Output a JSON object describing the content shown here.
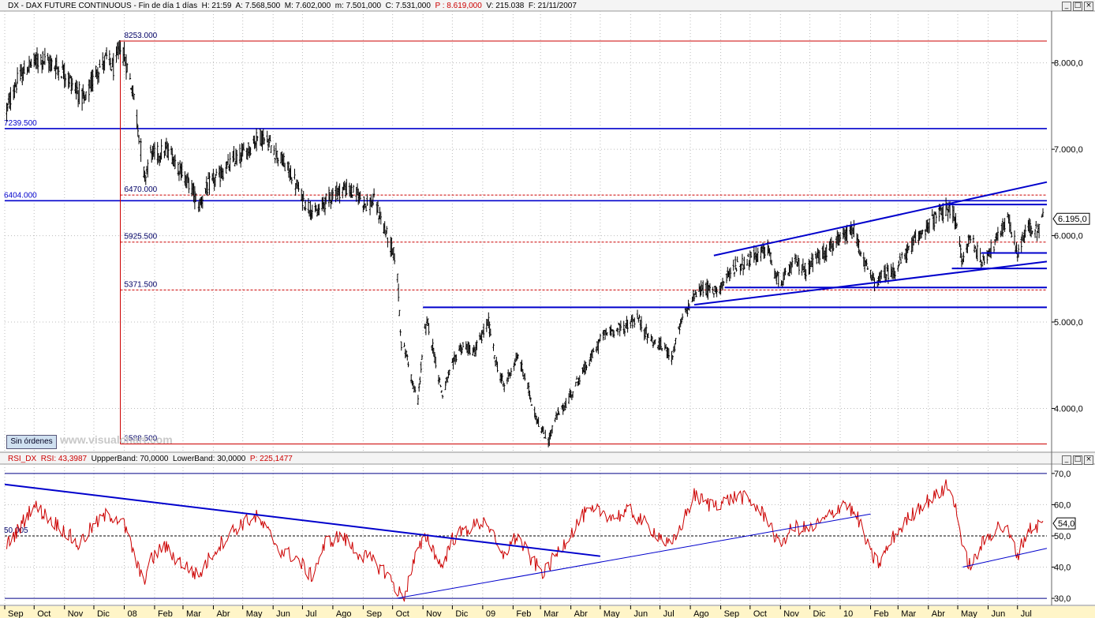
{
  "main_header": {
    "symbol": "DX",
    "name": "DAX FUTURE CONTINUOUS",
    "period": "Fin de día 1 días",
    "h": "H: 21:59",
    "a": "A: 7.568,500",
    "m": "M: 7.602,000",
    "mn": "m: 7.501,000",
    "c": "C: 7.531,000",
    "p": "P : 8.619,000",
    "v": "V: 215.038",
    "f": "F: 21/11/2007"
  },
  "rsi_header": {
    "name": "RSI_DX",
    "rsi": "RSI: 43,3987",
    "upper": "UppperBand: 70,0000",
    "lower": "LowerBand: 30,0000",
    "p": "P: 225,1477"
  },
  "watermark": "www.visualchart.com",
  "order_button": "Sin órdenes",
  "window_buttons": [
    "_",
    "□",
    "×"
  ],
  "colors": {
    "price": "#000000",
    "trendline": "#0000cc",
    "rsi_line": "#cc0000",
    "level_red": "#cc0000",
    "grid": "#bbbbbb",
    "axis_text": "#000000",
    "bg": "#ffffff"
  },
  "chart_data": [
    {
      "type": "ohlc",
      "title": "DX - DAX FUTURE CONTINUOUS",
      "ylim": [
        3520,
        8600
      ],
      "y_ticks": [
        {
          "v": 4000,
          "label": "4.000,0"
        },
        {
          "v": 5000,
          "label": "5.000,0"
        },
        {
          "v": 6000,
          "label": "6.000,0"
        },
        {
          "v": 7000,
          "label": "7.000,0"
        },
        {
          "v": 8000,
          "label": "8.000,0"
        }
      ],
      "last_value_label": "6.195,0",
      "last_value": 6195,
      "x_range": [
        "2007-09-01",
        "2010-07-31"
      ],
      "x_labels": [
        {
          "date": "2007-09-01",
          "label": "Sep"
        },
        {
          "date": "2007-10-01",
          "label": "Oct"
        },
        {
          "date": "2007-11-01",
          "label": "Nov"
        },
        {
          "date": "2007-12-01",
          "label": "Dic"
        },
        {
          "date": "2008-01-01",
          "label": "08"
        },
        {
          "date": "2008-02-01",
          "label": "Feb"
        },
        {
          "date": "2008-03-01",
          "label": "Mar"
        },
        {
          "date": "2008-04-01",
          "label": "Abr"
        },
        {
          "date": "2008-05-01",
          "label": "May"
        },
        {
          "date": "2008-06-01",
          "label": "Jun"
        },
        {
          "date": "2008-07-01",
          "label": "Jul"
        },
        {
          "date": "2008-08-01",
          "label": "Ago"
        },
        {
          "date": "2008-09-01",
          "label": "Sep"
        },
        {
          "date": "2008-10-01",
          "label": "Oct"
        },
        {
          "date": "2008-11-01",
          "label": "Nov"
        },
        {
          "date": "2008-12-01",
          "label": "Dic"
        },
        {
          "date": "2009-01-01",
          "label": "09"
        },
        {
          "date": "2009-02-01",
          "label": "Feb"
        },
        {
          "date": "2009-03-01",
          "label": "Mar"
        },
        {
          "date": "2009-04-01",
          "label": "Abr"
        },
        {
          "date": "2009-05-01",
          "label": "May"
        },
        {
          "date": "2009-06-01",
          "label": "Jun"
        },
        {
          "date": "2009-07-01",
          "label": "Jul"
        },
        {
          "date": "2009-08-01",
          "label": "Ago"
        },
        {
          "date": "2009-09-01",
          "label": "Sep"
        },
        {
          "date": "2009-10-01",
          "label": "Oct"
        },
        {
          "date": "2009-11-01",
          "label": "Nov"
        },
        {
          "date": "2009-12-01",
          "label": "Dic"
        },
        {
          "date": "2010-01-01",
          "label": "10"
        },
        {
          "date": "2010-02-01",
          "label": "Feb"
        },
        {
          "date": "2010-03-01",
          "label": "Mar"
        },
        {
          "date": "2010-04-01",
          "label": "Abr"
        },
        {
          "date": "2010-05-01",
          "label": "May"
        },
        {
          "date": "2010-06-01",
          "label": "Jun"
        },
        {
          "date": "2010-07-01",
          "label": "Jul"
        }
      ],
      "price_path": [
        [
          "2007-09-03",
          7450
        ],
        [
          "2007-09-12",
          7750
        ],
        [
          "2007-09-25",
          7960
        ],
        [
          "2007-10-08",
          8050
        ],
        [
          "2007-10-20",
          7980
        ],
        [
          "2007-10-31",
          7900
        ],
        [
          "2007-11-10",
          7750
        ],
        [
          "2007-11-22",
          7550
        ],
        [
          "2007-12-03",
          7900
        ],
        [
          "2007-12-14",
          8050
        ],
        [
          "2007-12-22",
          7920
        ],
        [
          "2007-12-28",
          8220
        ],
        [
          "2008-01-04",
          7950
        ],
        [
          "2008-01-11",
          7600
        ],
        [
          "2008-01-17",
          7100
        ],
        [
          "2008-01-22",
          6650
        ],
        [
          "2008-01-27",
          6950
        ],
        [
          "2008-02-05",
          6950
        ],
        [
          "2008-02-15",
          7000
        ],
        [
          "2008-02-28",
          6750
        ],
        [
          "2008-03-10",
          6550
        ],
        [
          "2008-03-17",
          6350
        ],
        [
          "2008-03-28",
          6600
        ],
        [
          "2008-04-08",
          6700
        ],
        [
          "2008-04-22",
          6880
        ],
        [
          "2008-05-05",
          6980
        ],
        [
          "2008-05-18",
          7160
        ],
        [
          "2008-05-27",
          7080
        ],
        [
          "2008-06-08",
          6900
        ],
        [
          "2008-06-20",
          6700
        ],
        [
          "2008-07-02",
          6400
        ],
        [
          "2008-07-15",
          6250
        ],
        [
          "2008-07-28",
          6450
        ],
        [
          "2008-08-12",
          6550
        ],
        [
          "2008-08-26",
          6480
        ],
        [
          "2008-09-05",
          6350
        ],
        [
          "2008-09-12",
          6400
        ],
        [
          "2008-09-19",
          6200
        ],
        [
          "2008-09-30",
          5850
        ],
        [
          "2008-10-05",
          5700
        ],
        [
          "2008-10-10",
          4750
        ],
        [
          "2008-10-16",
          4600
        ],
        [
          "2008-10-22",
          4250
        ],
        [
          "2008-10-27",
          4100
        ],
        [
          "2008-11-02",
          4850
        ],
        [
          "2008-11-06",
          5000
        ],
        [
          "2008-11-13",
          4600
        ],
        [
          "2008-11-21",
          4150
        ],
        [
          "2008-11-28",
          4400
        ],
        [
          "2008-12-08",
          4700
        ],
        [
          "2008-12-17",
          4700
        ],
        [
          "2008-12-23",
          4650
        ],
        [
          "2009-01-07",
          5000
        ],
        [
          "2009-01-14",
          4550
        ],
        [
          "2009-01-23",
          4250
        ],
        [
          "2009-01-30",
          4450
        ],
        [
          "2009-02-06",
          4600
        ],
        [
          "2009-02-16",
          4250
        ],
        [
          "2009-02-23",
          3950
        ],
        [
          "2009-03-02",
          3750
        ],
        [
          "2009-03-09",
          3620
        ],
        [
          "2009-03-17",
          3900
        ],
        [
          "2009-03-27",
          4050
        ],
        [
          "2009-04-07",
          4300
        ],
        [
          "2009-04-20",
          4550
        ],
        [
          "2009-05-04",
          4850
        ],
        [
          "2009-05-14",
          4900
        ],
        [
          "2009-05-27",
          4950
        ],
        [
          "2009-06-08",
          5050
        ],
        [
          "2009-06-15",
          4900
        ],
        [
          "2009-06-26",
          4750
        ],
        [
          "2009-07-06",
          4700
        ],
        [
          "2009-07-13",
          4600
        ],
        [
          "2009-07-23",
          5000
        ],
        [
          "2009-08-04",
          5300
        ],
        [
          "2009-08-14",
          5400
        ],
        [
          "2009-08-24",
          5350
        ],
        [
          "2009-09-04",
          5450
        ],
        [
          "2009-09-16",
          5650
        ],
        [
          "2009-09-28",
          5700
        ],
        [
          "2009-10-08",
          5780
        ],
        [
          "2009-10-19",
          5850
        ],
        [
          "2009-10-28",
          5500
        ],
        [
          "2009-11-05",
          5500
        ],
        [
          "2009-11-16",
          5700
        ],
        [
          "2009-11-27",
          5600
        ],
        [
          "2009-12-08",
          5750
        ],
        [
          "2009-12-21",
          5850
        ],
        [
          "2010-01-07",
          6000
        ],
        [
          "2010-01-15",
          6050
        ],
        [
          "2010-01-27",
          5650
        ],
        [
          "2010-02-05",
          5450
        ],
        [
          "2010-02-15",
          5550
        ],
        [
          "2010-02-26",
          5600
        ],
        [
          "2010-03-10",
          5800
        ],
        [
          "2010-03-25",
          6050
        ],
        [
          "2010-04-08",
          6200
        ],
        [
          "2010-04-20",
          6300
        ],
        [
          "2010-04-27",
          6250
        ],
        [
          "2010-05-06",
          5700
        ],
        [
          "2010-05-14",
          6000
        ],
        [
          "2010-05-25",
          5700
        ],
        [
          "2010-06-08",
          5900
        ],
        [
          "2010-06-21",
          6200
        ],
        [
          "2010-07-01",
          5800
        ],
        [
          "2010-07-12",
          6100
        ],
        [
          "2010-07-21",
          6050
        ],
        [
          "2010-07-27",
          6195
        ]
      ],
      "levels": [
        {
          "value": 8253,
          "label": "8253.000",
          "style": "red-solid"
        },
        {
          "value": 7239.5,
          "label": "7239.500",
          "style": "blue"
        },
        {
          "value": 6470,
          "label": "6470.000",
          "style": "red-dash"
        },
        {
          "value": 6404,
          "label": "6404.000",
          "style": "blue"
        },
        {
          "value": 5925.5,
          "label": "5925.500",
          "style": "red-dash"
        },
        {
          "value": 5371.5,
          "label": "5371.500",
          "style": "red-dash"
        },
        {
          "value": 3588.5,
          "label": "3588.500",
          "style": "red-solid"
        }
      ],
      "fib_anchor_date": "2007-12-28",
      "trendlines": [
        {
          "from": [
            "2008-11-01",
            5170
          ],
          "to": [
            "2010-07-31",
            5170
          ]
        },
        {
          "from": [
            "2009-08-25",
            5770
          ],
          "to": [
            "2010-07-31",
            6620
          ]
        },
        {
          "from": [
            "2009-08-05",
            5200
          ],
          "to": [
            "2010-07-31",
            5700
          ]
        },
        {
          "from": [
            "2010-04-15",
            6360
          ],
          "to": [
            "2010-07-31",
            6360
          ]
        },
        {
          "from": [
            "2010-04-25",
            5620
          ],
          "to": [
            "2010-07-31",
            5620
          ]
        },
        {
          "from": [
            "2009-09-05",
            5400
          ],
          "to": [
            "2010-07-31",
            5400
          ]
        },
        {
          "from": [
            "2010-05-25",
            5800
          ],
          "to": [
            "2010-07-31",
            5800
          ]
        }
      ]
    },
    {
      "type": "line",
      "title": "RSI_DX",
      "ylim": [
        28,
        73
      ],
      "y_ticks": [
        {
          "v": 30,
          "label": "30,0"
        },
        {
          "v": 40,
          "label": "40,0"
        },
        {
          "v": 50,
          "label": "50,0"
        },
        {
          "v": 60,
          "label": "60,0"
        },
        {
          "v": 70,
          "label": "70,0"
        }
      ],
      "bands": [
        70,
        30
      ],
      "mid": {
        "value": 50.005,
        "label": "50.005"
      },
      "last_value_label": "54,0",
      "last_value": 54,
      "rsi_path": [
        [
          "2007-09-03",
          47
        ],
        [
          "2007-09-15",
          52
        ],
        [
          "2007-09-30",
          60
        ],
        [
          "2007-10-15",
          56
        ],
        [
          "2007-10-31",
          52
        ],
        [
          "2007-11-15",
          47
        ],
        [
          "2007-11-30",
          53
        ],
        [
          "2007-12-15",
          57
        ],
        [
          "2007-12-30",
          55
        ],
        [
          "2008-01-10",
          45
        ],
        [
          "2008-01-20",
          35
        ],
        [
          "2008-01-28",
          42
        ],
        [
          "2008-02-10",
          47
        ],
        [
          "2008-02-22",
          43
        ],
        [
          "2008-03-05",
          40
        ],
        [
          "2008-03-17",
          37
        ],
        [
          "2008-03-30",
          44
        ],
        [
          "2008-04-15",
          50
        ],
        [
          "2008-04-30",
          54
        ],
        [
          "2008-05-15",
          56
        ],
        [
          "2008-05-27",
          51
        ],
        [
          "2008-06-10",
          45
        ],
        [
          "2008-06-25",
          43
        ],
        [
          "2008-07-10",
          37
        ],
        [
          "2008-07-25",
          48
        ],
        [
          "2008-08-10",
          50
        ],
        [
          "2008-08-25",
          45
        ],
        [
          "2008-09-10",
          42
        ],
        [
          "2008-09-25",
          38
        ],
        [
          "2008-10-05",
          33
        ],
        [
          "2008-10-12",
          30
        ],
        [
          "2008-10-25",
          44
        ],
        [
          "2008-11-05",
          50
        ],
        [
          "2008-11-20",
          40
        ],
        [
          "2008-12-01",
          49
        ],
        [
          "2008-12-15",
          52
        ],
        [
          "2009-01-05",
          55
        ],
        [
          "2009-01-20",
          43
        ],
        [
          "2009-02-05",
          50
        ],
        [
          "2009-02-20",
          42
        ],
        [
          "2009-03-05",
          38
        ],
        [
          "2009-03-15",
          43
        ],
        [
          "2009-04-01",
          51
        ],
        [
          "2009-04-15",
          57
        ],
        [
          "2009-05-01",
          58
        ],
        [
          "2009-05-15",
          56
        ],
        [
          "2009-06-01",
          58
        ],
        [
          "2009-06-15",
          54
        ],
        [
          "2009-07-01",
          50
        ],
        [
          "2009-07-12",
          46
        ],
        [
          "2009-07-25",
          55
        ],
        [
          "2009-08-05",
          63
        ],
        [
          "2009-08-20",
          60
        ],
        [
          "2009-09-05",
          61
        ],
        [
          "2009-09-20",
          63
        ],
        [
          "2009-10-05",
          60
        ],
        [
          "2009-10-20",
          55
        ],
        [
          "2009-10-30",
          47
        ],
        [
          "2009-11-15",
          53
        ],
        [
          "2009-12-01",
          52
        ],
        [
          "2009-12-20",
          56
        ],
        [
          "2010-01-05",
          61
        ],
        [
          "2010-01-20",
          55
        ],
        [
          "2010-02-01",
          44
        ],
        [
          "2010-02-10",
          41
        ],
        [
          "2010-02-25",
          50
        ],
        [
          "2010-03-10",
          55
        ],
        [
          "2010-03-25",
          60
        ],
        [
          "2010-04-10",
          63
        ],
        [
          "2010-04-20",
          66
        ],
        [
          "2010-05-01",
          58
        ],
        [
          "2010-05-06",
          45
        ],
        [
          "2010-05-15",
          40
        ],
        [
          "2010-05-25",
          47
        ],
        [
          "2010-06-10",
          53
        ],
        [
          "2010-06-20",
          52
        ],
        [
          "2010-07-01",
          44
        ],
        [
          "2010-07-12",
          52
        ],
        [
          "2010-07-27",
          54
        ]
      ],
      "trendlines": [
        {
          "from": [
            "2007-09-01",
            66.5
          ],
          "to": [
            "2009-05-01",
            43.5
          ]
        },
        {
          "from": [
            "2008-10-05",
            30
          ],
          "to": [
            "2010-02-01",
            57
          ]
        },
        {
          "from": [
            "2010-05-06",
            40
          ],
          "to": [
            "2010-07-31",
            46
          ]
        }
      ]
    }
  ]
}
